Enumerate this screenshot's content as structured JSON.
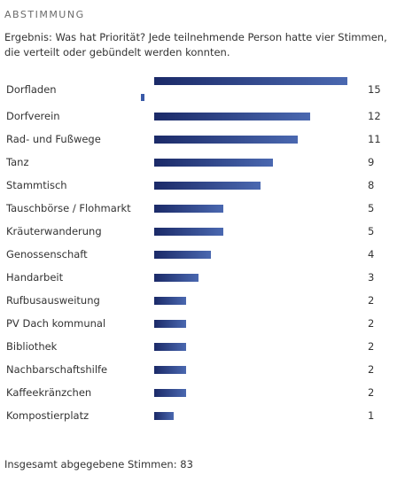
{
  "header": {
    "title": "ABSTIMMUNG"
  },
  "description": "Ergebnis: Was hat Priorität? Jede teilnehmende Person hatte vier Stimmen, die verteilt oder gebündelt werden konnten.",
  "chart_data": {
    "type": "bar",
    "orientation": "horizontal",
    "categories": [
      "Dorfladen",
      "Dorfverein",
      "Rad- und Fußwege",
      "Tanz",
      "Stammtisch",
      "Tauschbörse / Flohmarkt",
      "Kräuterwanderung",
      "Genossenschaft",
      "Handarbeit",
      "Rufbusausweitung",
      "PV Dach kommunal",
      "Bibliothek",
      "Nachbarschaftshilfe",
      "Kaffeekränzchen",
      "Kompostierplatz"
    ],
    "values": [
      15,
      12,
      11,
      9,
      8,
      5,
      5,
      4,
      3,
      2,
      2,
      2,
      2,
      2,
      1
    ],
    "color": "#1b2a68"
  },
  "footer": "Insgesamt abgegebene Stimmen: 83"
}
